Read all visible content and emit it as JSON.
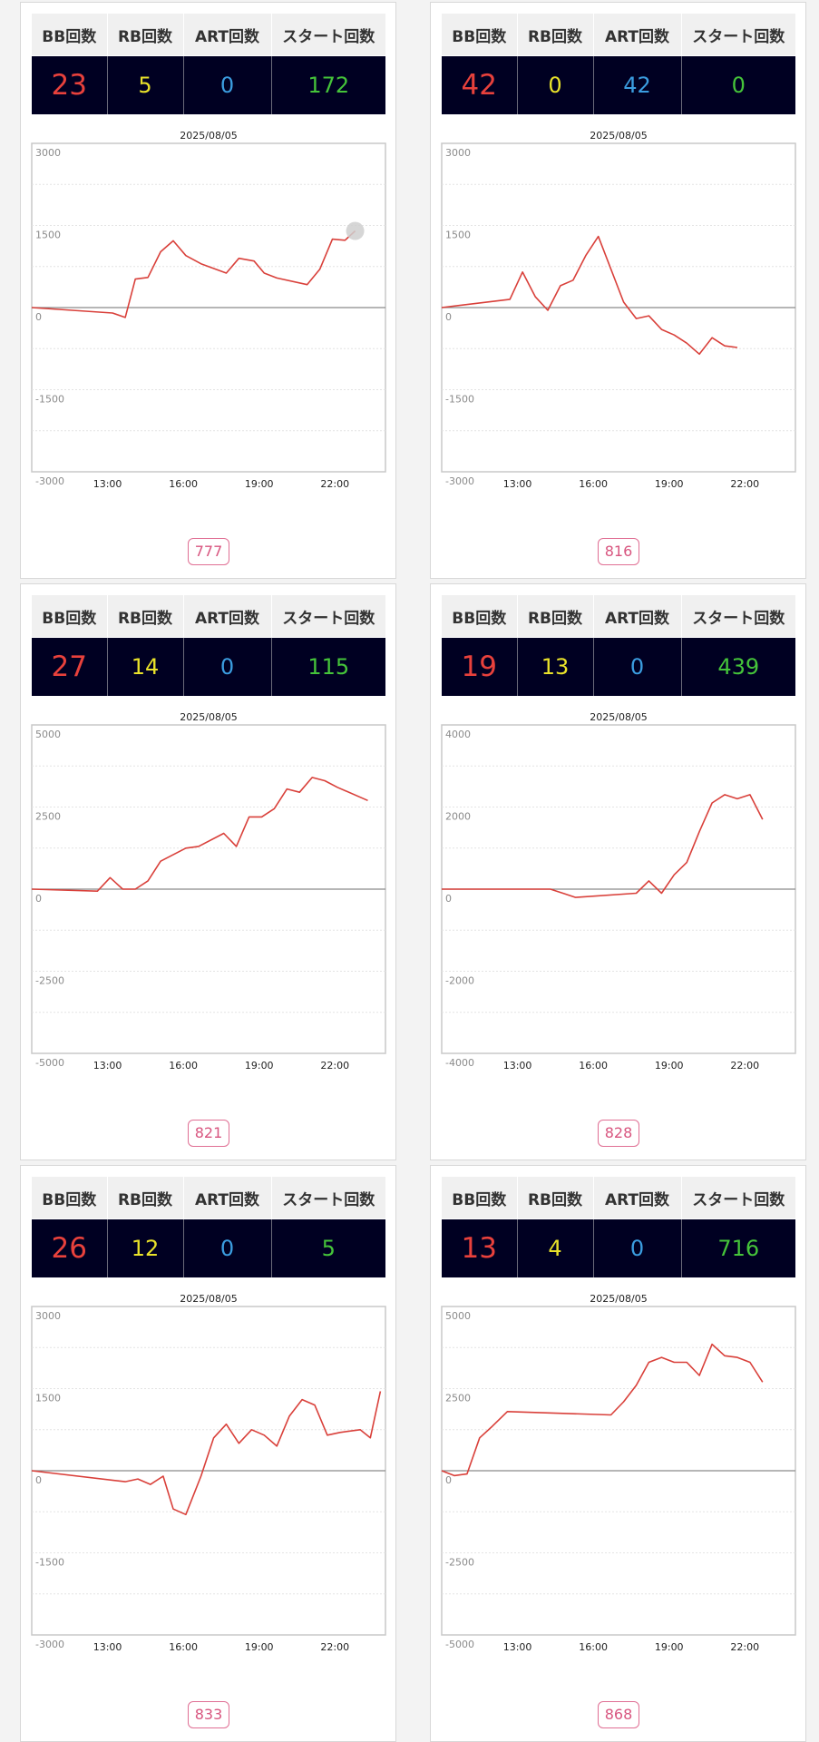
{
  "headers": {
    "bb": "BB回数",
    "rb": "RB回数",
    "art": "ART回数",
    "start": "スタート回数"
  },
  "colors": {
    "line": "#d9403a",
    "bb": "#e8413c",
    "rb": "#e9e22a",
    "art": "#3b9de0",
    "start": "#45c43a",
    "machine": "#d8557f"
  },
  "cards": [
    {
      "machine": "777",
      "bb": "23",
      "rb": "5",
      "art": "0",
      "start": "172",
      "date": "2025/08/05",
      "marker": true
    },
    {
      "machine": "816",
      "bb": "42",
      "rb": "0",
      "art": "42",
      "start": "0",
      "date": "2025/08/05",
      "marker": false
    },
    {
      "machine": "821",
      "bb": "27",
      "rb": "14",
      "art": "0",
      "start": "115",
      "date": "2025/08/05",
      "marker": false
    },
    {
      "machine": "828",
      "bb": "19",
      "rb": "13",
      "art": "0",
      "start": "439",
      "date": "2025/08/05",
      "marker": false
    },
    {
      "machine": "833",
      "bb": "26",
      "rb": "12",
      "art": "0",
      "start": "5",
      "date": "2025/08/05",
      "marker": false
    },
    {
      "machine": "868",
      "bb": "13",
      "rb": "4",
      "art": "0",
      "start": "716",
      "date": "2025/08/05",
      "marker": false
    }
  ],
  "chart_data": [
    {
      "type": "line",
      "title": "2025/08/05",
      "xticks": [
        "13:00",
        "16:00",
        "19:00",
        "22:00"
      ],
      "yticks": [
        "3000",
        "1500",
        "0",
        "-1500",
        "-3000"
      ],
      "ylim": [
        -3000,
        3000
      ],
      "xlim": [
        10,
        24
      ],
      "x": [
        10.0,
        13.2,
        13.7,
        14.1,
        14.6,
        15.1,
        15.6,
        16.1,
        16.7,
        17.7,
        18.2,
        18.8,
        19.2,
        19.7,
        20.9,
        21.4,
        21.9,
        22.4,
        22.8
      ],
      "y": [
        0,
        -100,
        -180,
        520,
        550,
        1020,
        1220,
        950,
        800,
        630,
        900,
        850,
        630,
        540,
        420,
        700,
        1250,
        1230,
        1400
      ]
    },
    {
      "type": "line",
      "title": "2025/08/05",
      "xticks": [
        "13:00",
        "16:00",
        "19:00",
        "22:00"
      ],
      "yticks": [
        "3000",
        "1500",
        "0",
        "-1500",
        "-3000"
      ],
      "ylim": [
        -3000,
        3000
      ],
      "xlim": [
        10,
        24
      ],
      "x": [
        10.0,
        12.7,
        13.2,
        13.7,
        14.2,
        14.7,
        15.2,
        15.7,
        16.2,
        17.2,
        17.7,
        18.2,
        18.7,
        19.2,
        19.7,
        20.2,
        20.7,
        21.2,
        21.7
      ],
      "y": [
        0,
        150,
        650,
        200,
        -50,
        400,
        500,
        950,
        1300,
        100,
        -200,
        -150,
        -400,
        -500,
        -650,
        -850,
        -550,
        -700,
        -730
      ]
    },
    {
      "type": "line",
      "title": "2025/08/05",
      "xticks": [
        "13:00",
        "16:00",
        "19:00",
        "22:00"
      ],
      "yticks": [
        "5000",
        "2500",
        "0",
        "-2500",
        "-5000"
      ],
      "ylim": [
        -5000,
        5000
      ],
      "xlim": [
        10,
        24
      ],
      "x": [
        10.0,
        12.6,
        13.1,
        13.6,
        14.1,
        14.6,
        15.1,
        16.1,
        16.6,
        17.6,
        18.1,
        18.6,
        19.1,
        19.6,
        20.1,
        20.6,
        21.1,
        21.6,
        22.1,
        23.3
      ],
      "y": [
        0,
        -60,
        350,
        0,
        0,
        250,
        850,
        1250,
        1300,
        1700,
        1300,
        2200,
        2200,
        2450,
        3050,
        2950,
        3400,
        3300,
        3100,
        2700
      ]
    },
    {
      "type": "line",
      "title": "2025/08/05",
      "xticks": [
        "13:00",
        "16:00",
        "19:00",
        "22:00"
      ],
      "yticks": [
        "4000",
        "2000",
        "0",
        "-2000",
        "-4000"
      ],
      "ylim": [
        -4000,
        4000
      ],
      "xlim": [
        10,
        24
      ],
      "x": [
        10.0,
        14.3,
        14.8,
        15.3,
        17.7,
        18.2,
        18.7,
        19.2,
        19.7,
        20.2,
        20.7,
        21.2,
        21.7,
        22.2,
        22.7
      ],
      "y": [
        0,
        0,
        -100,
        -200,
        -100,
        200,
        -100,
        350,
        650,
        1400,
        2100,
        2300,
        2200,
        2300,
        1700
      ]
    },
    {
      "type": "line",
      "title": "2025/08/05",
      "xticks": [
        "13:00",
        "16:00",
        "19:00",
        "22:00"
      ],
      "yticks": [
        "3000",
        "1500",
        "0",
        "-1500",
        "-3000"
      ],
      "ylim": [
        -3000,
        3000
      ],
      "xlim": [
        10,
        24
      ],
      "x": [
        10.0,
        13.7,
        14.2,
        14.7,
        15.2,
        15.6,
        16.1,
        16.7,
        17.2,
        17.7,
        18.2,
        18.7,
        19.2,
        19.7,
        20.2,
        20.7,
        21.2,
        21.7,
        22.2,
        23.0,
        23.4,
        23.8
      ],
      "y": [
        0,
        -200,
        -150,
        -250,
        -100,
        -700,
        -800,
        -100,
        600,
        850,
        500,
        750,
        650,
        450,
        1000,
        1300,
        1200,
        650,
        700,
        750,
        600,
        1450
      ]
    },
    {
      "type": "line",
      "title": "2025/08/05",
      "xticks": [
        "13:00",
        "16:00",
        "19:00",
        "22:00"
      ],
      "yticks": [
        "5000",
        "2500",
        "0",
        "-2500",
        "-5000"
      ],
      "ylim": [
        -5000,
        5000
      ],
      "xlim": [
        10,
        24
      ],
      "x": [
        10.0,
        10.5,
        11.0,
        11.5,
        12.0,
        12.6,
        16.7,
        17.2,
        17.7,
        18.2,
        18.7,
        19.2,
        19.7,
        20.2,
        20.7,
        21.2,
        21.7,
        22.2,
        22.7
      ],
      "y": [
        0,
        -150,
        -100,
        1000,
        1350,
        1800,
        1700,
        2100,
        2600,
        3300,
        3450,
        3300,
        3300,
        2900,
        3850,
        3500,
        3450,
        3300,
        2700
      ]
    }
  ]
}
